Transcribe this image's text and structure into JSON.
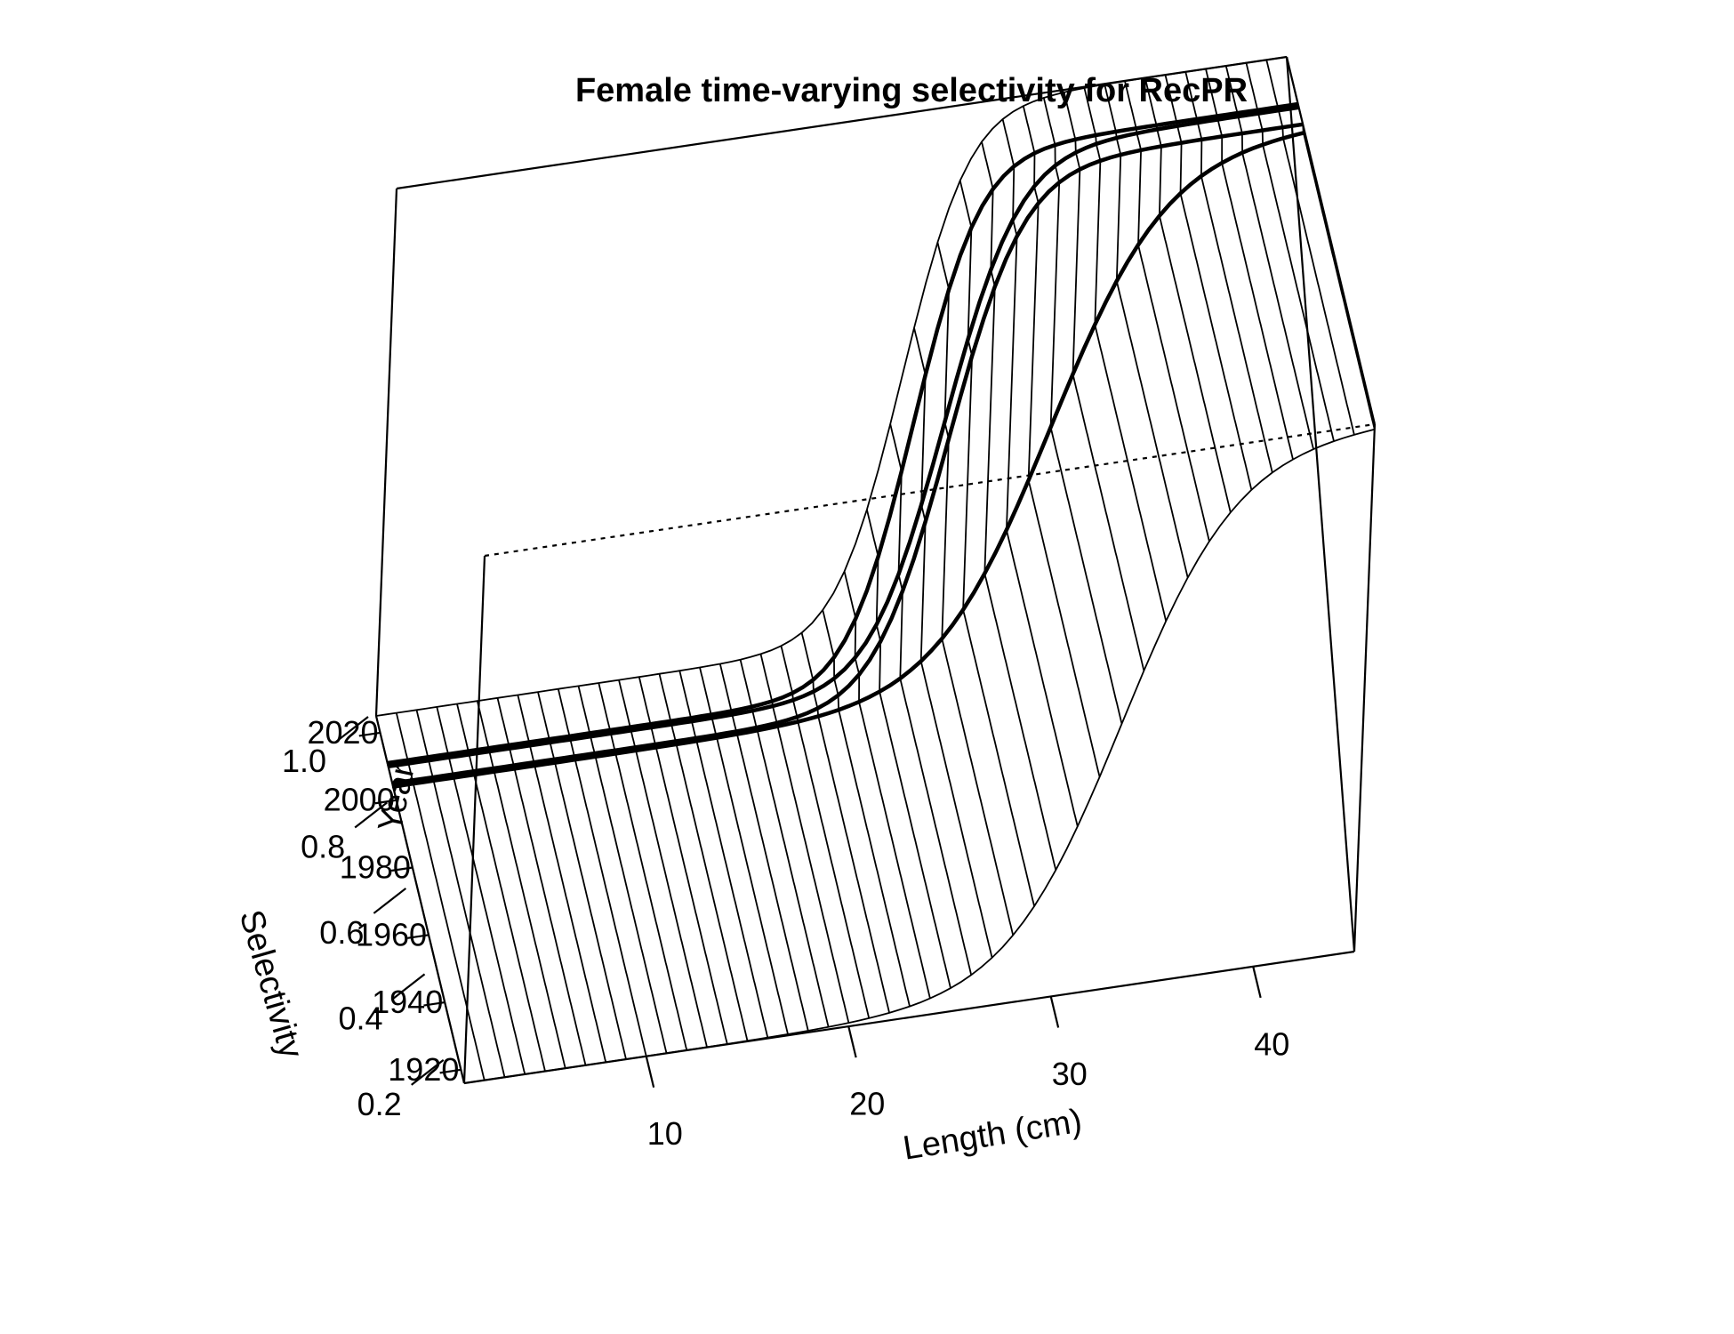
{
  "chart_data": {
    "type": "surface",
    "title": "Female time-varying selectivity for RecPR",
    "xlabel": "Length (cm)",
    "ylabel": "Year",
    "zlabel": "Selectivity",
    "x_ticks": [
      "10",
      "20",
      "30",
      "40"
    ],
    "y_ticks": [
      "1920",
      "1940",
      "1960",
      "1980",
      "2000",
      "2020"
    ],
    "z_ticks": [
      "0.2",
      "0.4",
      "0.6",
      "0.8",
      "1.0"
    ],
    "xlim": [
      1,
      45
    ],
    "ylim": [
      1916,
      2025
    ],
    "zlim": [
      0.15,
      1.0
    ],
    "x_grid_spacing": 1,
    "selectivity_model": "logistic",
    "periods": [
      {
        "years": [
          1916,
          2004
        ],
        "L50_cm": 33.0,
        "width_cm": 2.6
      },
      {
        "years": [
          2005,
          2010
        ],
        "L50_cm": 28.0,
        "width_cm": 1.6
      },
      {
        "years": [
          2011,
          2025
        ],
        "L50_cm": 26.5,
        "width_cm": 1.4
      }
    ],
    "highlighted_years": [
      2004,
      2005,
      2010,
      2011
    ]
  }
}
